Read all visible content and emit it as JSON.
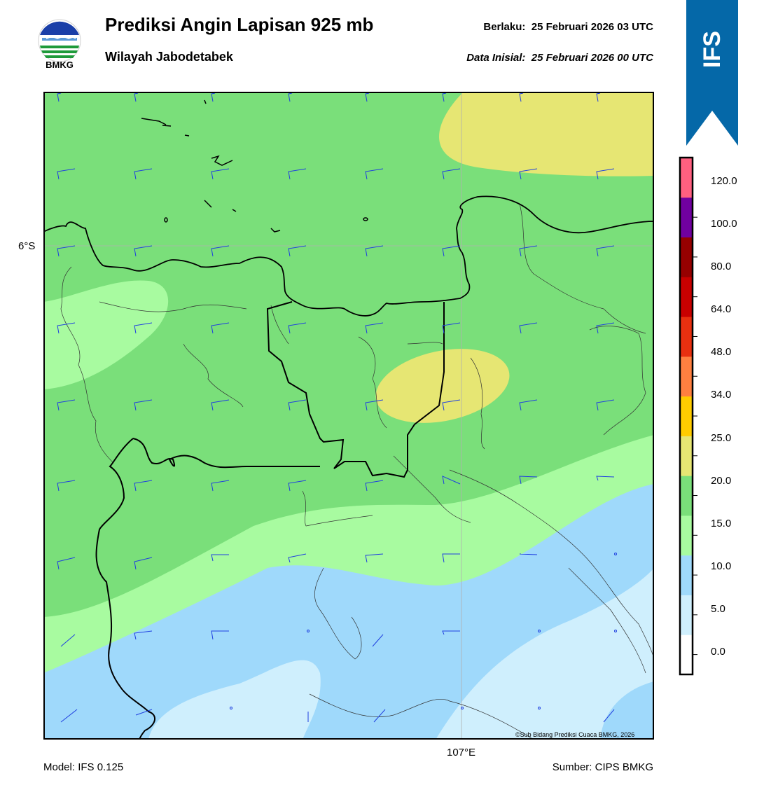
{
  "header": {
    "logo_text": "BMKG",
    "title": "Prediksi Angin Lapisan 925 mb",
    "subtitle": "Wilayah Jabodetabek",
    "valid_label": "Berlaku:",
    "valid_time": "25 Februari 2026 03 UTC",
    "init_label": "Data Inisial:",
    "init_time": "25 Februari 2026 00 UTC",
    "model_tag": "IFS"
  },
  "map": {
    "lat_label": "6°S",
    "lon_label": "107°E",
    "copyright": "©Sub Bidang Prediksi Cuaca BMKG, 2026"
  },
  "colorbar": {
    "ticks": [
      "0.0",
      "5.0",
      "10.0",
      "15.0",
      "20.0",
      "25.0",
      "34.0",
      "48.0",
      "64.0",
      "80.0",
      "100.0",
      "120.0"
    ],
    "colors": [
      "#ffffff",
      "#cfeffd",
      "#9fd9fb",
      "#a8fba0",
      "#7adf7a",
      "#e6e673",
      "#ffcc00",
      "#ff8040",
      "#e83010",
      "#c80000",
      "#960000",
      "#7000a0",
      "#ff6080"
    ]
  },
  "footer": {
    "model": "Model: IFS 0.125",
    "source": "Sumber: CIPS BMKG"
  }
}
